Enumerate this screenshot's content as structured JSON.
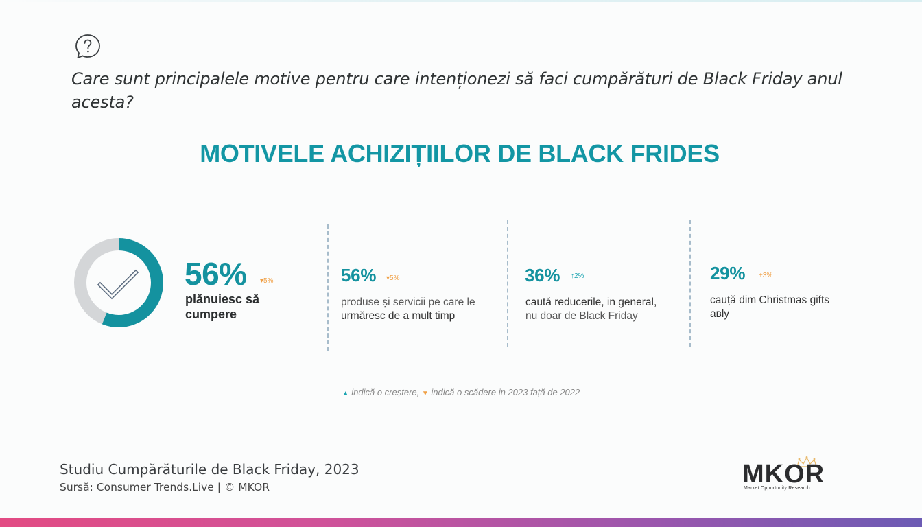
{
  "question": {
    "text": "Care sunt principalele motive pentru care intenționezi să faci cumpărături de Black Friday anul acesta?"
  },
  "title": "MOTIVELE ACHIZIȚIILOR DE BLACK FRIDES",
  "main_stat": {
    "percent": "56%",
    "delta": "▾5%",
    "label": "plănuiesc să cumpere",
    "donut_value": 0.56
  },
  "stats": [
    {
      "percent": "56%",
      "delta": "▾5%",
      "direction": "down",
      "label_line1": "produse și servicii pe care le",
      "label_line2": "urmăresc de a mult timp"
    },
    {
      "percent": "36%",
      "delta": "↑2%",
      "direction": "up",
      "label_line1": "caută reducerile, in general,",
      "label_line2": "nu doar de Black Friday"
    },
    {
      "percent": "29%",
      "delta": "+3%",
      "direction": "up",
      "label_line1": "cauță dim Christmas gifts",
      "label_line2": "aвly"
    }
  ],
  "legend": {
    "up_symbol": "▲",
    "up_text": "indică o creștere,",
    "down_symbol": "▼",
    "down_text": "indică o scădere in 2023 față de 2022"
  },
  "source": {
    "study": "Studiu Cumpărăturile de Black Friday, 2023",
    "credit": "Sursă: Consumer Trends.Live | © MKOR"
  },
  "logo": {
    "name": "MKOR",
    "tagline": "Market Opportunity Research"
  },
  "colors": {
    "teal": "#14929f",
    "orange": "#f0a046",
    "gray_ring": "#d4d6d8"
  }
}
